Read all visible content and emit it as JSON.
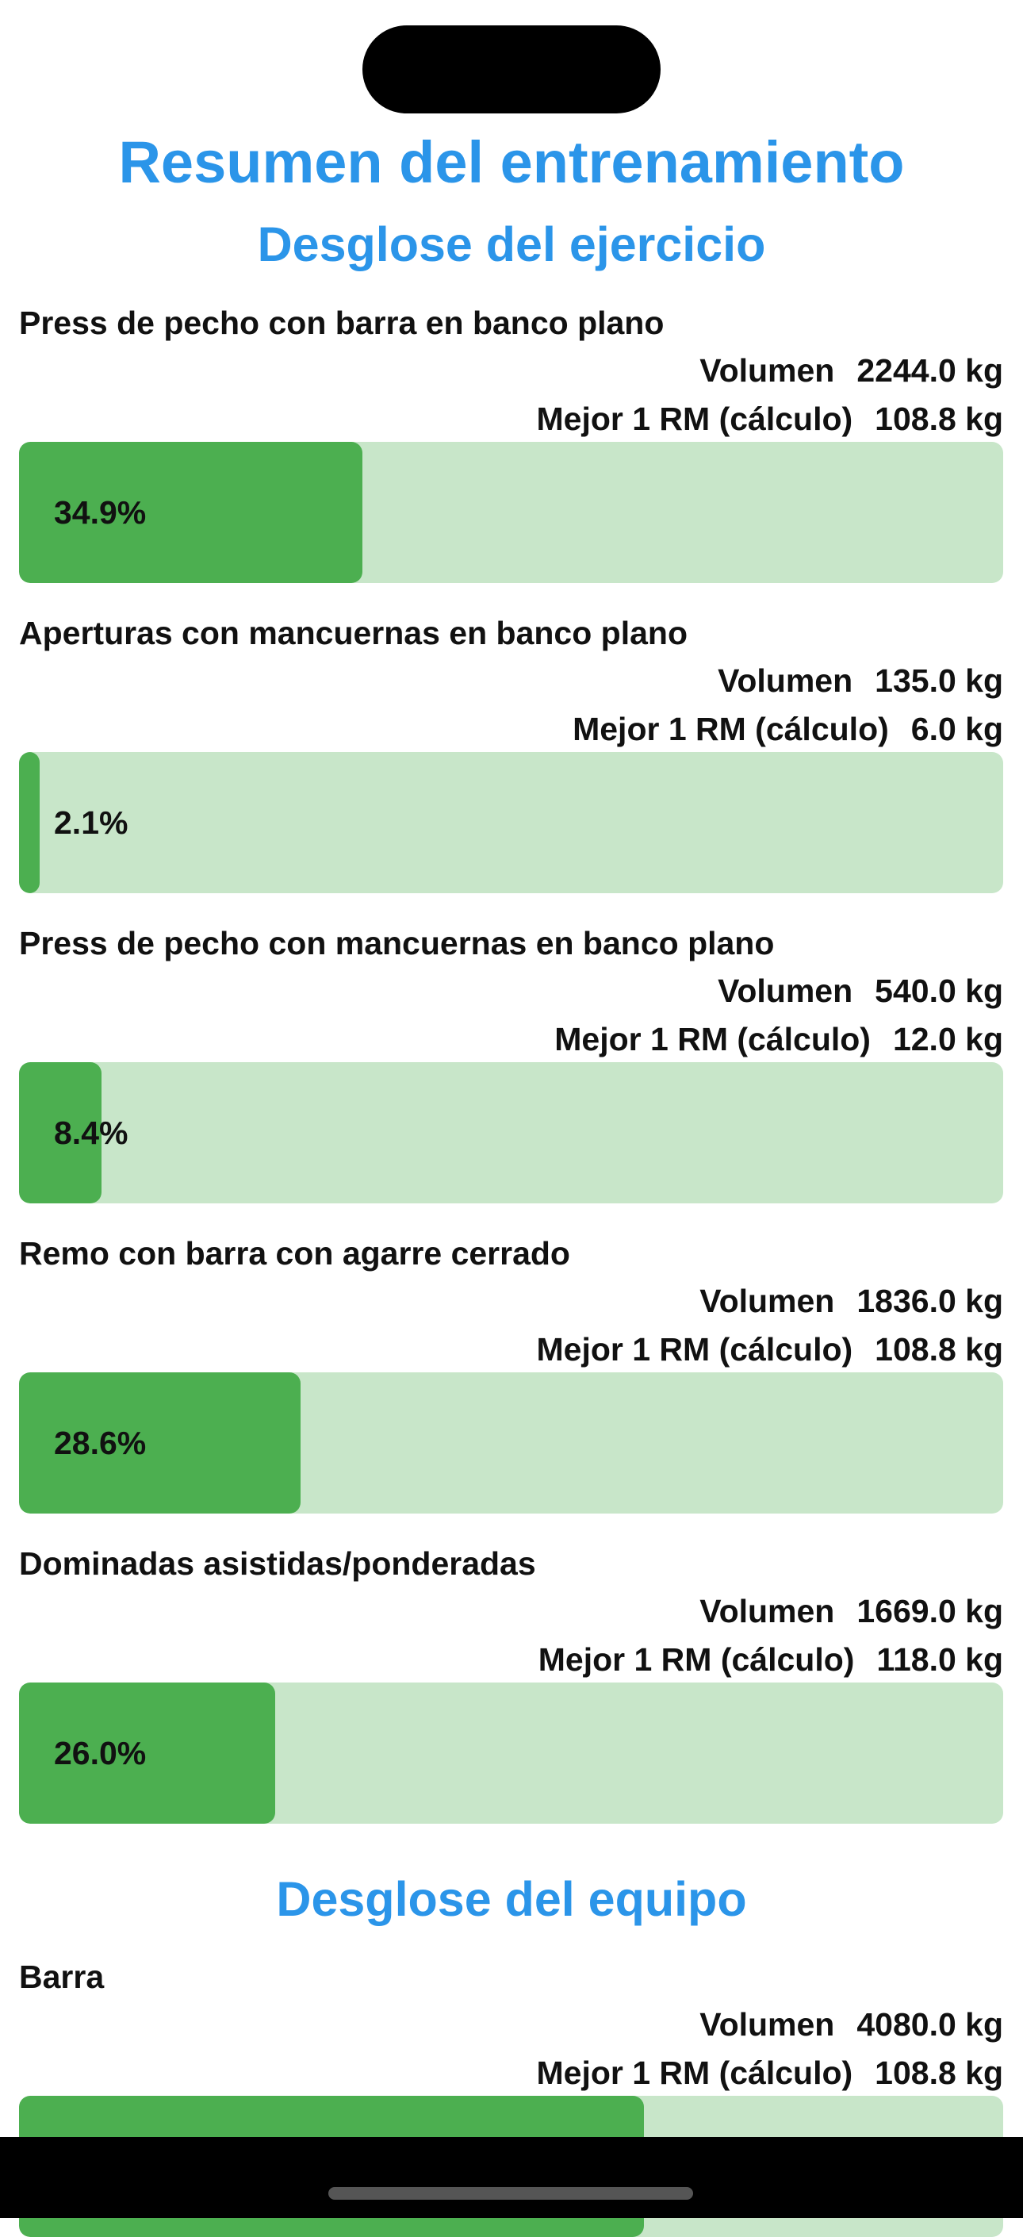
{
  "header": {
    "title": "Resumen del entrenamiento",
    "subtitle": "Desglose del ejercicio"
  },
  "exercises": [
    {
      "name": "Press de pecho con barra en banco plano",
      "volume_label": "Volumen",
      "volume": "2244.0 kg",
      "one_rm_label": "Mejor 1 RM (cálculo)",
      "one_rm": "108.8 kg",
      "percent": 34.9,
      "percent_label": "34.9%"
    },
    {
      "name": "Aperturas con mancuernas en banco plano",
      "volume_label": "Volumen",
      "volume": "135.0 kg",
      "one_rm_label": "Mejor 1 RM (cálculo)",
      "one_rm": "6.0 kg",
      "percent": 2.1,
      "percent_label": "2.1%"
    },
    {
      "name": "Press de pecho con mancuernas en banco plano",
      "volume_label": "Volumen",
      "volume": "540.0 kg",
      "one_rm_label": "Mejor 1 RM (cálculo)",
      "one_rm": "12.0 kg",
      "percent": 8.4,
      "percent_label": "8.4%"
    },
    {
      "name": "Remo con barra con agarre cerrado",
      "volume_label": "Volumen",
      "volume": "1836.0 kg",
      "one_rm_label": "Mejor 1 RM (cálculo)",
      "one_rm": "108.8 kg",
      "percent": 28.6,
      "percent_label": "28.6%"
    },
    {
      "name": "Dominadas asistidas/ponderadas",
      "volume_label": "Volumen",
      "volume": "1669.0 kg",
      "one_rm_label": "Mejor 1 RM (cálculo)",
      "one_rm": "118.0 kg",
      "percent": 26.0,
      "percent_label": "26.0%"
    }
  ],
  "equipment": {
    "title": "Desglose del equipo",
    "items": [
      {
        "name": "Barra",
        "volume_label": "Volumen",
        "volume": "4080.0 kg",
        "one_rm_label": "Mejor 1 RM (cálculo)",
        "one_rm": "108.8 kg",
        "percent": 63.5
      }
    ]
  }
}
